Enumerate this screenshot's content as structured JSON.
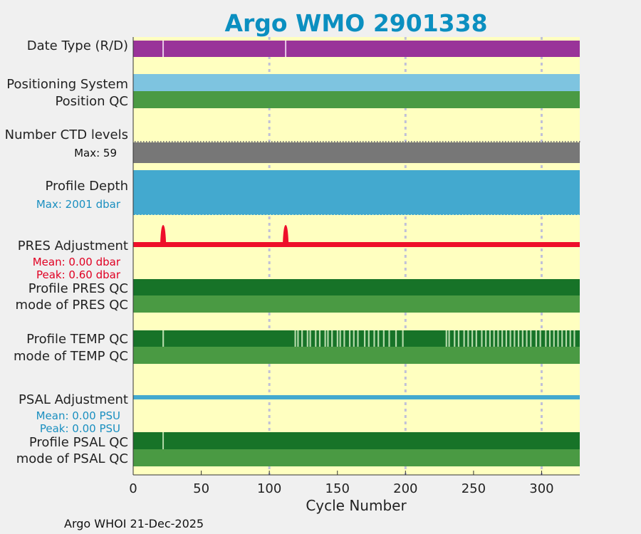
{
  "chart_data": {
    "type": "bar",
    "title": "Argo WMO 2901338",
    "xlabel": "Cycle Number",
    "xlim": [
      0,
      328
    ],
    "xticks": [
      0,
      50,
      100,
      150,
      200,
      250,
      300
    ],
    "gridlines_x": [
      100,
      200,
      300
    ],
    "footer": "Argo WHOI 21-Dec-2025",
    "rows": [
      {
        "key": "date_type",
        "label": "Date Type (R/D)",
        "color": "#993399",
        "marks": [
          22,
          112
        ],
        "mark_color": "#e8c8e8"
      },
      {
        "key": "positioning_system",
        "label": "Positioning System",
        "color": "#7ec4e0"
      },
      {
        "key": "position_qc",
        "label": "Position QC",
        "color": "#4a9a43"
      },
      {
        "key": "number_ctd_levels",
        "label": "Number CTD levels",
        "color": "#777777",
        "max_label": "Max: 59"
      },
      {
        "key": "profile_depth",
        "label": "Profile Depth",
        "color": "#43a9cf",
        "max_label": "Max: 2001 dbar",
        "max_color": "#1a8fc0"
      },
      {
        "key": "pres_adjustment",
        "label": "PRES Adjustment",
        "color": "#ee0f2a",
        "mean_label": "Mean: 0.00 dbar",
        "peak_label": "Peak: 0.60 dbar",
        "stat_color": "#e00022",
        "peaks": [
          22,
          112
        ]
      },
      {
        "key": "profile_pres_qc",
        "label": "Profile PRES QC",
        "color": "#177328"
      },
      {
        "key": "mode_pres_qc",
        "label": "mode of PRES QC",
        "color": "#4a9a43"
      },
      {
        "key": "profile_temp_qc",
        "label": "Profile TEMP QC",
        "color": "#177328",
        "light_color": "#b3d9a8",
        "light_marks": [
          22,
          119,
          121,
          124,
          128,
          130,
          134,
          137,
          141,
          143,
          146,
          150,
          152,
          155,
          159,
          162,
          165,
          170,
          173,
          177,
          180,
          184,
          188,
          193,
          198,
          230,
          232,
          236,
          239,
          243,
          246,
          249,
          252,
          256,
          259,
          262,
          265,
          268,
          271,
          274,
          277,
          280,
          283,
          286,
          289,
          292,
          296,
          299,
          303,
          306,
          309,
          312,
          315,
          318,
          321,
          324
        ]
      },
      {
        "key": "mode_temp_qc",
        "label": "mode of TEMP QC",
        "color": "#4a9a43"
      },
      {
        "key": "psal_adjustment",
        "label": "PSAL Adjustment",
        "color": "#43a9cf",
        "mean_label": "Mean: 0.00 PSU",
        "peak_label": "Peak: 0.00 PSU",
        "stat_color": "#1a8fc0"
      },
      {
        "key": "profile_psal_qc",
        "label": "Profile PSAL QC",
        "color": "#177328",
        "marks": [
          22
        ],
        "mark_color": "#b3d9a8"
      },
      {
        "key": "mode_psal_qc",
        "label": "mode of PSAL QC",
        "color": "#4a9a43"
      }
    ]
  }
}
